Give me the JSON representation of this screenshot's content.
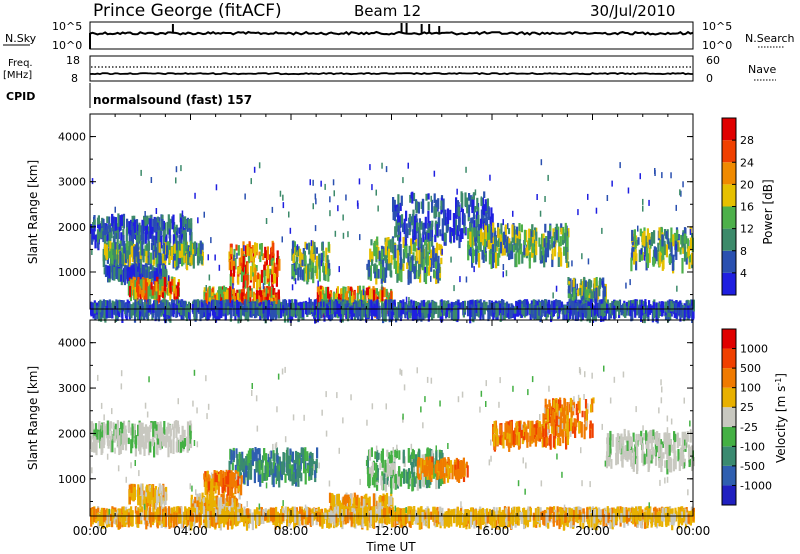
{
  "header": {
    "station": "Prince George (fitACF)",
    "beam": "Beam 12",
    "date": "30/Jul/2010"
  },
  "nsky_panel": {
    "left_label": "N.Sky",
    "left_ticks": [
      "10^5",
      "10^0"
    ],
    "right_ticks": [
      "10^5",
      "10^0"
    ],
    "right_label": "N.Search"
  },
  "freq_panel": {
    "left_label_1": "Freq.",
    "left_label_2": "[MHz]",
    "left_ticks": [
      "18",
      "8"
    ],
    "right_ticks": [
      "60",
      "0"
    ],
    "right_label": "Nave",
    "cpid_label": "CPID",
    "cpid_value": "normalsound (fast) 157"
  },
  "chart_data": [
    {
      "type": "heatmap",
      "panel": "power",
      "ylabel": "Slant Range [km]",
      "ylim": [
        180,
        4500
      ],
      "yticks": [
        "1000",
        "2000",
        "3000",
        "4000"
      ],
      "xlim": [
        "00:00",
        "24:00"
      ],
      "colorbar": {
        "label": "Power [dB]",
        "ticks": [
          "4",
          "8",
          "12",
          "16",
          "20",
          "24",
          "28"
        ],
        "colors": [
          "#1f1fe0",
          "#2a50b0",
          "#3c8a6a",
          "#4db04a",
          "#e6c000",
          "#f08a00",
          "#f04000",
          "#e00000"
        ]
      },
      "echo_regions": [
        {
          "t": [
            0.0,
            4.0
          ],
          "r": [
            1800,
            2300
          ],
          "level": "low"
        },
        {
          "t": [
            0.5,
            4.5
          ],
          "r": [
            1350,
            1700
          ],
          "level": "mid"
        },
        {
          "t": [
            0.5,
            3.0
          ],
          "r": [
            1000,
            1200
          ],
          "level": "low"
        },
        {
          "t": [
            1.5,
            3.5
          ],
          "r": [
            600,
            900
          ],
          "level": "high"
        },
        {
          "t": [
            4.5,
            7.5
          ],
          "r": [
            400,
            700
          ],
          "level": "high"
        },
        {
          "t": [
            5.5,
            7.5
          ],
          "r": [
            900,
            1700
          ],
          "level": "high"
        },
        {
          "t": [
            8.0,
            9.5
          ],
          "r": [
            1000,
            1700
          ],
          "level": "mid"
        },
        {
          "t": [
            9.0,
            12.0
          ],
          "r": [
            300,
            700
          ],
          "level": "high"
        },
        {
          "t": [
            11.0,
            14.0
          ],
          "r": [
            1000,
            1800
          ],
          "level": "mid"
        },
        {
          "t": [
            12.0,
            16.0
          ],
          "r": [
            1800,
            2800
          ],
          "level": "low"
        },
        {
          "t": [
            15.0,
            19.0
          ],
          "r": [
            1400,
            2100
          ],
          "level": "mid"
        },
        {
          "t": [
            19.0,
            20.5
          ],
          "r": [
            500,
            900
          ],
          "level": "mid"
        },
        {
          "t": [
            21.5,
            24.0
          ],
          "r": [
            1300,
            2000
          ],
          "level": "mid"
        },
        {
          "t": [
            0.0,
            24.0
          ],
          "r": [
            200,
            400
          ],
          "level": "low"
        }
      ]
    },
    {
      "type": "heatmap",
      "panel": "velocity",
      "ylabel": "Slant Range [km]",
      "ylim": [
        180,
        4500
      ],
      "yticks": [
        "1000",
        "2000",
        "3000",
        "4000"
      ],
      "xlabel": "Time UT",
      "xticks": [
        "00:00",
        "04:00",
        "08:00",
        "12:00",
        "16:00",
        "20:00",
        "00:00"
      ],
      "xlim": [
        "00:00",
        "24:00"
      ],
      "colorbar": {
        "label": "Velocity [m s^-1]",
        "ticks": [
          "1000",
          "500",
          "100",
          "25",
          "-25",
          "-100",
          "-500",
          "-1000"
        ],
        "colors": [
          "#2020c0",
          "#2f5fb0",
          "#3a8a70",
          "#44b044",
          "#c8c8c0",
          "#e8b000",
          "#f07a00",
          "#f04000",
          "#e00000"
        ]
      },
      "echo_regions": [
        {
          "t": [
            0.0,
            4.0
          ],
          "r": [
            1800,
            2300
          ],
          "v": "ground"
        },
        {
          "t": [
            1.5,
            3.0
          ],
          "r": [
            600,
            900
          ],
          "v": "toward-slow"
        },
        {
          "t": [
            4.0,
            6.0
          ],
          "r": [
            400,
            700
          ],
          "v": "toward-slow"
        },
        {
          "t": [
            5.5,
            9.0
          ],
          "r": [
            1100,
            1700
          ],
          "v": "away-mid"
        },
        {
          "t": [
            4.5,
            6.0
          ],
          "r": [
            900,
            1200
          ],
          "v": "toward-mid"
        },
        {
          "t": [
            9.5,
            12.0
          ],
          "r": [
            300,
            700
          ],
          "v": "toward-slow"
        },
        {
          "t": [
            11.0,
            14.0
          ],
          "r": [
            1000,
            1700
          ],
          "v": "away-slow"
        },
        {
          "t": [
            13.0,
            15.0
          ],
          "r": [
            1200,
            1500
          ],
          "v": "toward-mid"
        },
        {
          "t": [
            16.0,
            19.0
          ],
          "r": [
            1900,
            2300
          ],
          "v": "toward-mid"
        },
        {
          "t": [
            18.0,
            20.0
          ],
          "r": [
            2200,
            2800
          ],
          "v": "toward-mid"
        },
        {
          "t": [
            20.5,
            24.0
          ],
          "r": [
            1400,
            2100
          ],
          "v": "ground"
        },
        {
          "t": [
            0.0,
            24.0
          ],
          "r": [
            200,
            400
          ],
          "v": "toward-slow"
        }
      ]
    }
  ]
}
